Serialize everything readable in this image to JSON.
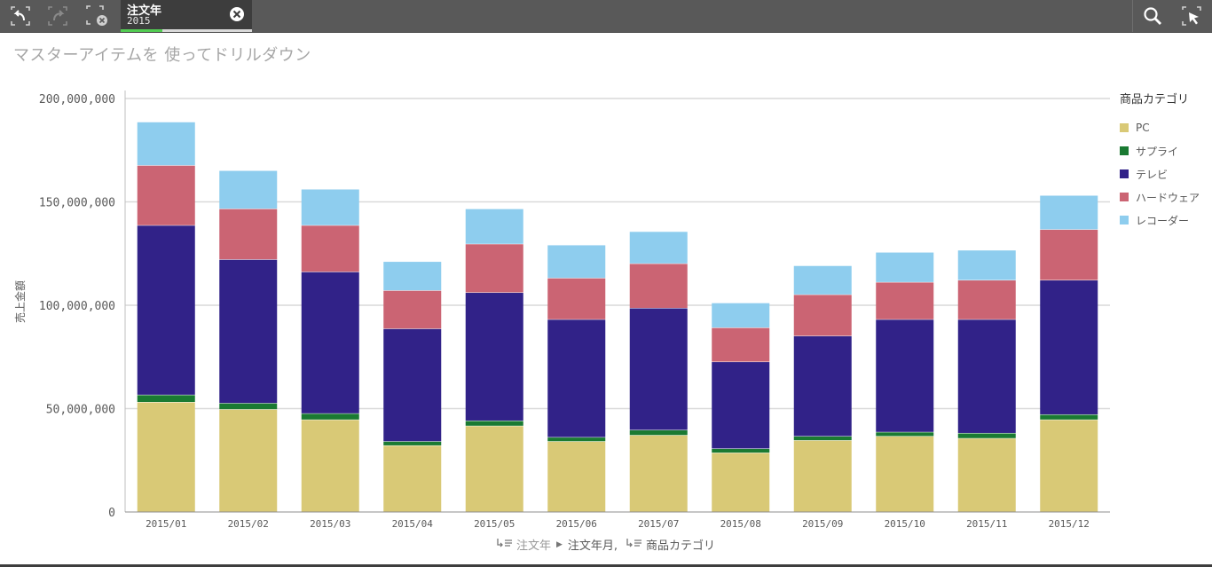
{
  "toolbar": {
    "buttons": [
      "step-back-icon",
      "step-forward-icon",
      "clear-selections-icon"
    ],
    "selection": {
      "field": "注文年",
      "value": "2015"
    },
    "right_buttons": [
      "search-icon",
      "select-tool-icon"
    ]
  },
  "chart_data": {
    "type": "bar",
    "stacked": true,
    "title": "マスターアイテムを 使ってドリルダウン",
    "xlabel": "",
    "ylabel": "売上金額",
    "ylim": [
      0,
      200000000
    ],
    "yticks": [
      "0",
      "50,000,000",
      "100,000,000",
      "150,000,000",
      "200,000,000"
    ],
    "yticks_values": [
      0,
      50000000,
      100000000,
      150000000,
      200000000
    ],
    "grid": true,
    "legend_title": "商品カテゴリ",
    "legend_placement": "right",
    "categories": [
      "2015/01",
      "2015/02",
      "2015/03",
      "2015/04",
      "2015/05",
      "2015/06",
      "2015/07",
      "2015/08",
      "2015/09",
      "2015/10",
      "2015/11",
      "2015/12"
    ],
    "series": [
      {
        "name": "PC",
        "color": "#d9c976",
        "values": [
          53000000,
          49500000,
          44500000,
          32000000,
          41500000,
          34000000,
          37000000,
          28500000,
          34500000,
          36500000,
          35500000,
          44500000
        ]
      },
      {
        "name": "サプライ",
        "color": "#1a7a32",
        "values": [
          3500000,
          3000000,
          3000000,
          2000000,
          2500000,
          2000000,
          2500000,
          2000000,
          2000000,
          2000000,
          2500000,
          2500000
        ]
      },
      {
        "name": "テレビ",
        "color": "#312288",
        "values": [
          82000000,
          69500000,
          68500000,
          54500000,
          62000000,
          57000000,
          59000000,
          42000000,
          48500000,
          54500000,
          55000000,
          65000000
        ]
      },
      {
        "name": "ハードウェア",
        "color": "#cb6473",
        "values": [
          29000000,
          24500000,
          22500000,
          18500000,
          23500000,
          20000000,
          21500000,
          16500000,
          20000000,
          18000000,
          19000000,
          24500000
        ]
      },
      {
        "name": "レコーダー",
        "color": "#8ecdee",
        "values": [
          21000000,
          18500000,
          17500000,
          14000000,
          17000000,
          16000000,
          15500000,
          12000000,
          14000000,
          14500000,
          14500000,
          16500000
        ]
      }
    ]
  },
  "drill_path": {
    "level1": "注文年",
    "level2": "注文年月,",
    "level3": "商品カテゴリ"
  }
}
